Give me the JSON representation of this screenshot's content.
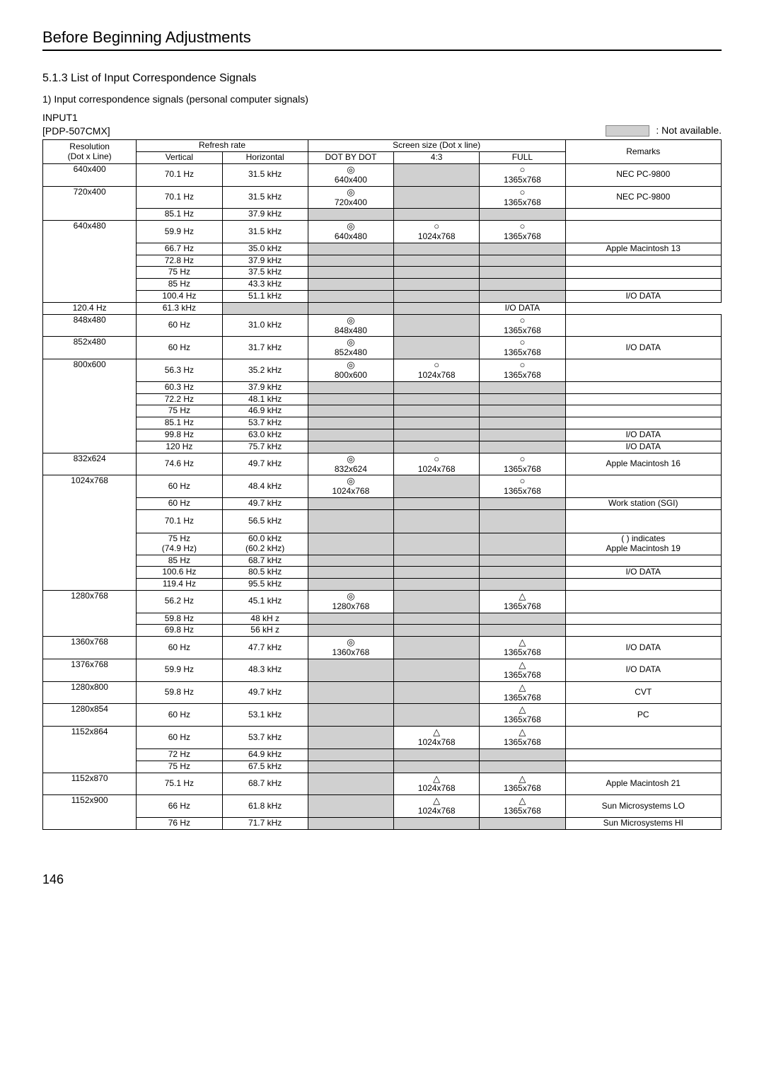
{
  "page_title": "Before Beginning Adjustments",
  "section_title": "5.1.3 List of Input Correspondence Signals",
  "list_item": "1) Input correspondence signals (personal computer signals)",
  "input_label": "INPUT1",
  "model_label": "[PDP-507CMX]",
  "na_label": ": Not available.",
  "page_number": "146",
  "headers": {
    "resolution_top": "Resolution",
    "resolution_bottom": "(Dot x Line)",
    "refresh_rate": "Refresh rate",
    "vertical": "Vertical",
    "horizontal": "Horizontal",
    "screen_size": "Screen size (Dot x line)",
    "dot_by_dot": "DOT BY DOT",
    "ratio43": "4:3",
    "full": "FULL",
    "remarks": "Remarks"
  },
  "symbols": {
    "double_circle": "◎",
    "circle": "○",
    "triangle": "△"
  },
  "rows": [
    {
      "res": "640x400",
      "vert": "70.1 Hz",
      "horiz": "31.5 kHz",
      "dbd": {
        "sym": "double_circle",
        "txt": "640x400"
      },
      "r43": {
        "na": true
      },
      "full": {
        "sym": "circle",
        "txt": "1365x768"
      },
      "rem": "NEC PC-9800"
    },
    {
      "res": "720x400",
      "res_span": 2,
      "vert": "70.1 Hz",
      "horiz": "31.5 kHz",
      "dbd": {
        "sym": "double_circle",
        "txt": "720x400"
      },
      "r43": {
        "na": true
      },
      "full": {
        "sym": "circle",
        "txt": "1365x768"
      },
      "rem": "NEC PC-9800"
    },
    {
      "vert": "85.1 Hz",
      "horiz": "37.9 kHz",
      "dbd": {
        "na": true
      },
      "r43": {
        "na": true
      },
      "full": {
        "na": true
      },
      "rem": ""
    },
    {
      "res": "640x480",
      "res_span": 6,
      "vert": "59.9 Hz",
      "horiz": "31.5 kHz",
      "dbd": {
        "sym": "double_circle",
        "txt": "640x480"
      },
      "r43": {
        "sym": "circle",
        "txt": "1024x768"
      },
      "full": {
        "sym": "circle",
        "txt": "1365x768"
      },
      "rem": ""
    },
    {
      "vert": "66.7 Hz",
      "horiz": "35.0 kHz",
      "dbd": {
        "na": true
      },
      "r43": {
        "na": true
      },
      "full": {
        "na": true
      },
      "rem": "Apple Macintosh 13"
    },
    {
      "vert": "72.8 Hz",
      "horiz": "37.9 kHz",
      "dbd": {
        "na": true
      },
      "r43": {
        "na": true
      },
      "full": {
        "na": true
      },
      "rem": ""
    },
    {
      "vert": "75 Hz",
      "horiz": "37.5 kHz",
      "dbd": {
        "na": true
      },
      "r43": {
        "na": true
      },
      "full": {
        "na": true
      },
      "rem": ""
    },
    {
      "vert": "85 Hz",
      "horiz": "43.3 kHz",
      "dbd": {
        "na": true
      },
      "r43": {
        "na": true
      },
      "full": {
        "na": true
      },
      "rem": ""
    },
    {
      "vert": "100.4 Hz",
      "horiz": "51.1 kHz",
      "dbd": {
        "na": true
      },
      "r43": {
        "na": true
      },
      "full": {
        "na": true
      },
      "rem": "I/O DATA"
    },
    {
      "vert": "120.4 Hz",
      "horiz": "61.3 kHz",
      "dbd": {
        "na": true
      },
      "r43": {
        "na": true
      },
      "full": {
        "na": true
      },
      "rem": "I/O DATA"
    },
    {
      "res": "848x480",
      "vert": "60 Hz",
      "horiz": "31.0 kHz",
      "dbd": {
        "sym": "double_circle",
        "txt": "848x480"
      },
      "r43": {
        "na": true
      },
      "full": {
        "sym": "circle",
        "txt": "1365x768"
      },
      "rem": ""
    },
    {
      "res": "852x480",
      "vert": "60 Hz",
      "horiz": "31.7 kHz",
      "dbd": {
        "sym": "double_circle",
        "txt": "852x480"
      },
      "r43": {
        "na": true
      },
      "full": {
        "sym": "circle",
        "txt": "1365x768"
      },
      "rem": "I/O DATA"
    },
    {
      "res": "800x600",
      "res_span": 7,
      "vert": "56.3 Hz",
      "horiz": "35.2 kHz",
      "dbd": {
        "sym": "double_circle",
        "txt": "800x600"
      },
      "r43": {
        "sym": "circle",
        "txt": "1024x768"
      },
      "full": {
        "sym": "circle",
        "txt": "1365x768"
      },
      "rem": ""
    },
    {
      "vert": "60.3 Hz",
      "horiz": "37.9 kHz",
      "dbd": {
        "na": true
      },
      "r43": {
        "na": true
      },
      "full": {
        "na": true
      },
      "rem": ""
    },
    {
      "vert": "72.2 Hz",
      "horiz": "48.1 kHz",
      "dbd": {
        "na": true
      },
      "r43": {
        "na": true
      },
      "full": {
        "na": true
      },
      "rem": ""
    },
    {
      "vert": "75 Hz",
      "horiz": "46.9 kHz",
      "dbd": {
        "na": true
      },
      "r43": {
        "na": true
      },
      "full": {
        "na": true
      },
      "rem": ""
    },
    {
      "vert": "85.1 Hz",
      "horiz": "53.7 kHz",
      "dbd": {
        "na": true
      },
      "r43": {
        "na": true
      },
      "full": {
        "na": true
      },
      "rem": ""
    },
    {
      "vert": "99.8 Hz",
      "horiz": "63.0 kHz",
      "dbd": {
        "na": true
      },
      "r43": {
        "na": true
      },
      "full": {
        "na": true
      },
      "rem": "I/O DATA"
    },
    {
      "vert": "120 Hz",
      "horiz": "75.7 kHz",
      "dbd": {
        "na": true
      },
      "r43": {
        "na": true
      },
      "full": {
        "na": true
      },
      "rem": "I/O DATA"
    },
    {
      "res": "832x624",
      "vert": "74.6 Hz",
      "horiz": "49.7 kHz",
      "dbd": {
        "sym": "double_circle",
        "txt": "832x624"
      },
      "r43": {
        "sym": "circle",
        "txt": "1024x768"
      },
      "full": {
        "sym": "circle",
        "txt": "1365x768"
      },
      "rem": "Apple Macintosh 16"
    },
    {
      "res": "1024x768",
      "res_span": 7,
      "vert": "60 Hz",
      "horiz": "48.4 kHz",
      "dbd": {
        "sym": "double_circle",
        "txt": "1024x768"
      },
      "r43": {
        "na": true
      },
      "full": {
        "sym": "circle",
        "txt": "1365x768"
      },
      "rem": ""
    },
    {
      "vert": "60 Hz",
      "horiz": "49.7 kHz",
      "dbd": {
        "na": true
      },
      "r43": {
        "na": true
      },
      "full": {
        "na": true
      },
      "rem": "Work station (SGI)"
    },
    {
      "vert": "70.1 Hz",
      "horiz": "56.5 kHz",
      "dbd": {
        "na": true
      },
      "r43": {
        "na": true
      },
      "full": {
        "na": true
      },
      "rem": "",
      "tall": true
    },
    {
      "vert": "75 Hz\n(74.9 Hz)",
      "horiz": "60.0 kHz\n(60.2 kHz)",
      "dbd": {
        "na": true
      },
      "r43": {
        "na": true
      },
      "full": {
        "na": true
      },
      "rem": "( ) indicates\nApple Macintosh 19",
      "multi": true
    },
    {
      "vert": "85 Hz",
      "horiz": "68.7 kHz",
      "dbd": {
        "na": true
      },
      "r43": {
        "na": true
      },
      "full": {
        "na": true
      },
      "rem": ""
    },
    {
      "vert": "100.6 Hz",
      "horiz": "80.5 kHz",
      "dbd": {
        "na": true
      },
      "r43": {
        "na": true
      },
      "full": {
        "na": true
      },
      "rem": "I/O DATA"
    },
    {
      "vert": "119.4 Hz",
      "horiz": "95.5 kHz",
      "dbd": {
        "na": true
      },
      "r43": {
        "na": true
      },
      "full": {
        "na": true
      },
      "rem": ""
    },
    {
      "res": "1280x768",
      "res_span": 3,
      "vert": "56.2 Hz",
      "horiz": "45.1 kHz",
      "dbd": {
        "sym": "double_circle",
        "txt": "1280x768"
      },
      "r43": {
        "na": true
      },
      "full": {
        "sym": "triangle",
        "txt": "1365x768"
      },
      "rem": ""
    },
    {
      "vert": "59.8 Hz",
      "horiz": "48 kH  z",
      "dbd": {
        "na": true
      },
      "r43": {
        "na": true
      },
      "full": {
        "na": true
      },
      "rem": ""
    },
    {
      "vert": "69.8 Hz",
      "horiz": "56 kH  z",
      "dbd": {
        "na": true
      },
      "r43": {
        "na": true
      },
      "full": {
        "na": true
      },
      "rem": ""
    },
    {
      "res": "1360x768",
      "vert": "60 Hz",
      "horiz": "47.7 kHz",
      "dbd": {
        "sym": "double_circle",
        "txt": "1360x768"
      },
      "r43": {
        "na": true
      },
      "full": {
        "sym": "triangle",
        "txt": "1365x768"
      },
      "rem": "I/O DATA"
    },
    {
      "res": "1376x768",
      "vert": "59.9 Hz",
      "horiz": "48.3 kHz",
      "dbd": {
        "na": true
      },
      "r43": {
        "na": true
      },
      "full": {
        "sym": "triangle",
        "txt": "1365x768"
      },
      "rem": "I/O DATA"
    },
    {
      "res": "1280x800",
      "vert": "59.8 Hz",
      "horiz": "49.7 kHz",
      "dbd": {
        "na": true
      },
      "r43": {
        "na": true
      },
      "full": {
        "sym": "triangle",
        "txt": "1365x768"
      },
      "rem": "CVT"
    },
    {
      "res": "1280x854",
      "vert": "60 Hz",
      "horiz": "53.1 kHz",
      "dbd": {
        "na": true
      },
      "r43": {
        "na": true
      },
      "full": {
        "sym": "triangle",
        "txt": "1365x768"
      },
      "rem": "PC"
    },
    {
      "res": "1152x864",
      "res_span": 3,
      "vert": "60 Hz",
      "horiz": "53.7 kHz",
      "dbd": {
        "na": true
      },
      "r43": {
        "sym": "triangle",
        "txt": "1024x768"
      },
      "full": {
        "sym": "triangle",
        "txt": "1365x768"
      },
      "rem": ""
    },
    {
      "vert": "72 Hz",
      "horiz": "64.9 kHz",
      "dbd": {
        "na": true
      },
      "r43": {
        "na": true
      },
      "full": {
        "na": true
      },
      "rem": ""
    },
    {
      "vert": "75 Hz",
      "horiz": "67.5 kHz",
      "dbd": {
        "na": true
      },
      "r43": {
        "na": true
      },
      "full": {
        "na": true
      },
      "rem": ""
    },
    {
      "res": "1152x870",
      "vert": "75.1 Hz",
      "horiz": "68.7 kHz",
      "dbd": {
        "na": true
      },
      "r43": {
        "sym": "triangle",
        "txt": "1024x768"
      },
      "full": {
        "sym": "triangle",
        "txt": "1365x768"
      },
      "rem": "Apple Macintosh 21"
    },
    {
      "res": "1152x900",
      "res_span": 2,
      "vert": "66 Hz",
      "horiz": "61.8 kHz",
      "dbd": {
        "na": true
      },
      "r43": {
        "sym": "triangle",
        "txt": "1024x768"
      },
      "full": {
        "sym": "triangle",
        "txt": "1365x768"
      },
      "rem": "Sun Microsystems LO"
    },
    {
      "vert": "76 Hz",
      "horiz": "71.7 kHz",
      "dbd": {
        "na": true
      },
      "r43": {
        "na": true
      },
      "full": {
        "na": true
      },
      "rem": "Sun Microsystems HI"
    }
  ]
}
